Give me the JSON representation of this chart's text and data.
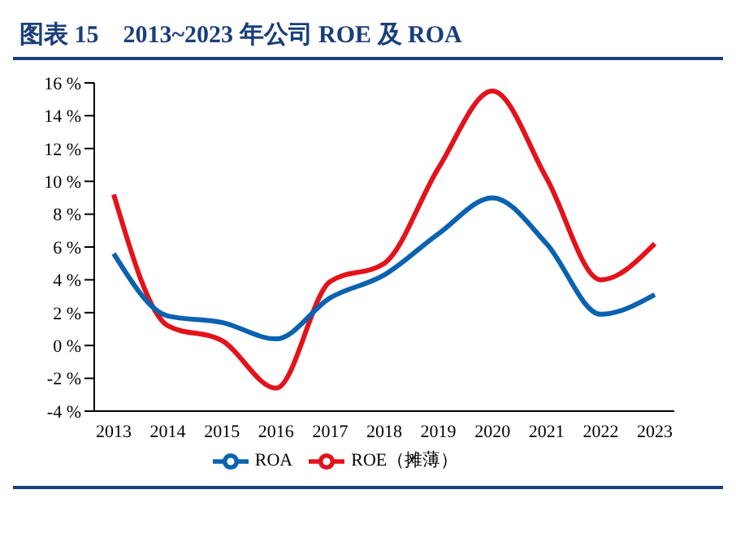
{
  "chart_data": {
    "type": "line",
    "title": "图表 15　2013~2023 年公司 ROE 及 ROA",
    "categories": [
      "2013",
      "2014",
      "2015",
      "2016",
      "2017",
      "2018",
      "2019",
      "2020",
      "2021",
      "2022",
      "2023"
    ],
    "series": [
      {
        "name": "ROE（摊薄）",
        "color": "#e3121b",
        "values": [
          9.2,
          1.2,
          0.3,
          -2.6,
          3.9,
          5.0,
          10.8,
          15.5,
          10.2,
          4.0,
          6.2
        ]
      },
      {
        "name": "ROA",
        "color": "#0a62b0",
        "values": [
          5.6,
          1.8,
          1.4,
          0.4,
          2.9,
          4.3,
          6.8,
          9.0,
          6.2,
          1.9,
          3.1
        ]
      }
    ],
    "ylim": [
      -4,
      16
    ],
    "yticks": [
      {
        "value": -4,
        "label": "-4 %"
      },
      {
        "value": -2,
        "label": "-2 %"
      },
      {
        "value": 0,
        "label": "0 %"
      },
      {
        "value": 2,
        "label": "2 %"
      },
      {
        "value": 4,
        "label": "4 %"
      },
      {
        "value": 6,
        "label": "6 %"
      },
      {
        "value": 8,
        "label": "8 %"
      },
      {
        "value": 10,
        "label": "10 %"
      },
      {
        "value": 12,
        "label": "12 %"
      },
      {
        "value": 14,
        "label": "14 %"
      },
      {
        "value": 16,
        "label": "16 %"
      }
    ],
    "grid": false,
    "legend": "bottom",
    "marker": "none",
    "line_style": "solid"
  }
}
